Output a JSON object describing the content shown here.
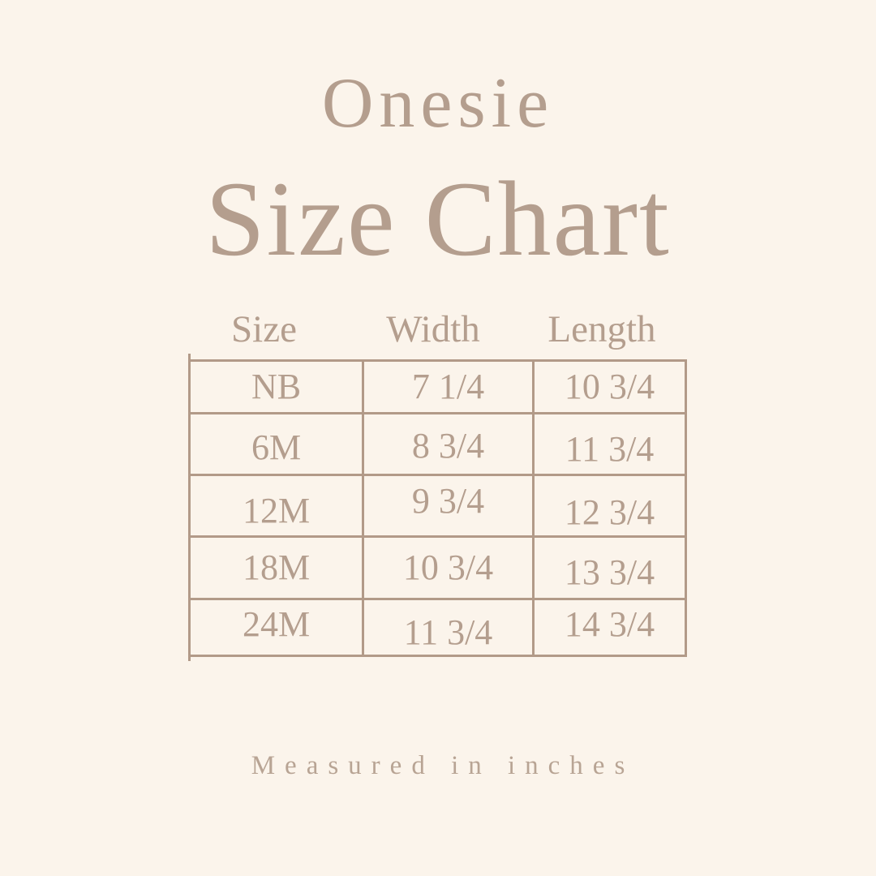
{
  "poster": {
    "subtitle": "Onesie",
    "title": "Size Chart",
    "footnote": "Measured in inches"
  },
  "colors": {
    "background": "#FBF4EB",
    "text": "#B49E8E",
    "table_border": "#B29A88",
    "footnote_text": "#B8A494"
  },
  "chart_data": {
    "type": "table",
    "title": "Onesie Size Chart",
    "units": "inches",
    "columns": [
      "Size",
      "Width",
      "Length"
    ],
    "rows": [
      [
        "NB",
        "7 1/4",
        "10 3/4"
      ],
      [
        "6M",
        "8 3/4",
        "11 3/4"
      ],
      [
        "12M",
        "9 3/4",
        "12 3/4"
      ],
      [
        "18M",
        "10 3/4",
        "13 3/4"
      ],
      [
        "24M",
        "11 3/4",
        "14 3/4"
      ]
    ]
  }
}
